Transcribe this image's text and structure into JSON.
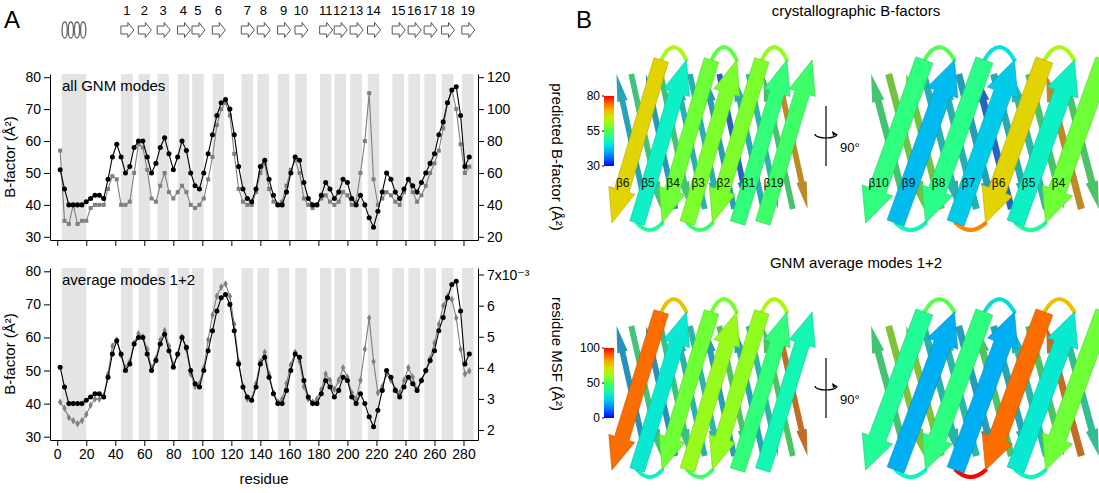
{
  "panel_labels": [
    "A",
    "B"
  ],
  "secondary_structure": {
    "helix": {
      "start": 3,
      "end": 20
    },
    "strands": [
      {
        "label": "1",
        "start": 44,
        "end": 52
      },
      {
        "label": "2",
        "start": 56,
        "end": 64
      },
      {
        "label": "3",
        "start": 69,
        "end": 77
      },
      {
        "label": "4",
        "start": 83,
        "end": 91
      },
      {
        "label": "5",
        "start": 93,
        "end": 101
      },
      {
        "label": "6",
        "start": 107,
        "end": 115
      },
      {
        "label": "7",
        "start": 127,
        "end": 135
      },
      {
        "label": "8",
        "start": 138,
        "end": 146
      },
      {
        "label": "9",
        "start": 152,
        "end": 160
      },
      {
        "label": "10",
        "start": 164,
        "end": 172
      },
      {
        "label": "11",
        "start": 181,
        "end": 189
      },
      {
        "label": "12",
        "start": 191,
        "end": 199
      },
      {
        "label": "13",
        "start": 202,
        "end": 210
      },
      {
        "label": "14",
        "start": 214,
        "end": 222
      },
      {
        "label": "15",
        "start": 231,
        "end": 239
      },
      {
        "label": "16",
        "start": 242,
        "end": 250
      },
      {
        "label": "17",
        "start": 253,
        "end": 261
      },
      {
        "label": "18",
        "start": 265,
        "end": 273
      },
      {
        "label": "19",
        "start": 279,
        "end": 287
      }
    ]
  },
  "chart_data": [
    {
      "type": "line",
      "title": "all GNM modes",
      "y_label": "B-factor (Å²)",
      "y2_label": "predicted B-factor (Å²)",
      "x": [
        2,
        5,
        8,
        11,
        14,
        17,
        20,
        23,
        26,
        29,
        32,
        35,
        38,
        41,
        44,
        47,
        50,
        53,
        56,
        59,
        62,
        65,
        68,
        71,
        74,
        77,
        80,
        83,
        86,
        89,
        92,
        95,
        98,
        101,
        104,
        107,
        110,
        113,
        116,
        119,
        122,
        125,
        128,
        131,
        134,
        137,
        140,
        143,
        146,
        149,
        152,
        155,
        158,
        161,
        164,
        167,
        170,
        173,
        176,
        179,
        182,
        185,
        188,
        191,
        194,
        197,
        200,
        203,
        206,
        209,
        212,
        215,
        218,
        221,
        224,
        227,
        230,
        233,
        236,
        239,
        242,
        245,
        248,
        251,
        254,
        257,
        260,
        263,
        266,
        269,
        272,
        275,
        278,
        281,
        284
      ],
      "xlim": [
        -5,
        290
      ],
      "xticks": [
        0,
        20,
        40,
        60,
        80,
        100,
        120,
        140,
        160,
        180,
        200,
        220,
        240,
        260,
        280
      ],
      "ylim": [
        29,
        81
      ],
      "yticks": [
        30,
        40,
        50,
        60,
        70,
        80
      ],
      "y2lim": [
        18,
        122
      ],
      "y2ticks": [
        20,
        40,
        60,
        80,
        100,
        120
      ],
      "tick_labels": "y",
      "series": [
        {
          "color": "#000000",
          "marker": "circle",
          "values": [
            51,
            45,
            40,
            40,
            40,
            40,
            41,
            42,
            43,
            43,
            42,
            48,
            55,
            59,
            55,
            50,
            52,
            58,
            60,
            60,
            55,
            50,
            53,
            58,
            61,
            56,
            51,
            55,
            60,
            57,
            50,
            46,
            45,
            50,
            56,
            62,
            68,
            72,
            73,
            70,
            62,
            52,
            45,
            42,
            41,
            45,
            52,
            54,
            48,
            43,
            40,
            40,
            44,
            50,
            55,
            54,
            47,
            42,
            40,
            40,
            43,
            47,
            45,
            42,
            44,
            48,
            47,
            42,
            40,
            43,
            40,
            36,
            33,
            38,
            44,
            50,
            48,
            44,
            42,
            45,
            48,
            46,
            44,
            47,
            50,
            53,
            56,
            62,
            66,
            72,
            76,
            77,
            68,
            52,
            55
          ]
        },
        {
          "color": "#7f7f7f",
          "marker": "square",
          "axis": "y2",
          "values": [
            74,
            30,
            28,
            40,
            28,
            30,
            30,
            38,
            40,
            40,
            40,
            50,
            58,
            56,
            40,
            40,
            42,
            60,
            78,
            76,
            62,
            44,
            42,
            52,
            60,
            48,
            44,
            48,
            52,
            48,
            40,
            38,
            40,
            44,
            56,
            70,
            90,
            100,
            104,
            96,
            72,
            50,
            42,
            40,
            40,
            48,
            60,
            66,
            50,
            42,
            40,
            42,
            52,
            62,
            68,
            60,
            44,
            40,
            38,
            40,
            44,
            46,
            42,
            40,
            42,
            48,
            46,
            40,
            42,
            60,
            80,
            110,
            56,
            40,
            44,
            48,
            46,
            42,
            40,
            48,
            56,
            48,
            42,
            46,
            52,
            60,
            66,
            74,
            88,
            104,
            112,
            100,
            78,
            60,
            64
          ]
        }
      ]
    },
    {
      "type": "line",
      "title": "average modes 1+2",
      "x_label": "residue",
      "y_label": "B-factor (Å²)",
      "y2_label": "residue MSF (Å²)",
      "x": [
        2,
        5,
        8,
        11,
        14,
        17,
        20,
        23,
        26,
        29,
        32,
        35,
        38,
        41,
        44,
        47,
        50,
        53,
        56,
        59,
        62,
        65,
        68,
        71,
        74,
        77,
        80,
        83,
        86,
        89,
        92,
        95,
        98,
        101,
        104,
        107,
        110,
        113,
        116,
        119,
        122,
        125,
        128,
        131,
        134,
        137,
        140,
        143,
        146,
        149,
        152,
        155,
        158,
        161,
        164,
        167,
        170,
        173,
        176,
        179,
        182,
        185,
        188,
        191,
        194,
        197,
        200,
        203,
        206,
        209,
        212,
        215,
        218,
        221,
        224,
        227,
        230,
        233,
        236,
        239,
        242,
        245,
        248,
        251,
        254,
        257,
        260,
        263,
        266,
        269,
        272,
        275,
        278,
        281,
        284
      ],
      "xlim": [
        -5,
        290
      ],
      "xticks": [
        0,
        20,
        40,
        60,
        80,
        100,
        120,
        140,
        160,
        180,
        200,
        220,
        240,
        260,
        280
      ],
      "ylim": [
        29,
        81
      ],
      "yticks": [
        30,
        40,
        50,
        60,
        70,
        80
      ],
      "y2lim": [
        1.68,
        7.21
      ],
      "y2ticks": [
        2,
        3,
        4,
        5,
        6,
        {
          "value": 7,
          "label": "7x10⁻³"
        }
      ],
      "series": [
        {
          "color": "#000000",
          "marker": "circle",
          "values": [
            51,
            45,
            40,
            40,
            40,
            40,
            41,
            42,
            43,
            43,
            42,
            48,
            55,
            59,
            55,
            50,
            52,
            58,
            60,
            60,
            55,
            50,
            53,
            58,
            61,
            56,
            51,
            55,
            60,
            57,
            50,
            46,
            45,
            50,
            56,
            62,
            68,
            72,
            73,
            70,
            62,
            52,
            45,
            42,
            41,
            45,
            52,
            54,
            48,
            43,
            40,
            40,
            44,
            50,
            55,
            54,
            47,
            42,
            40,
            40,
            43,
            47,
            45,
            42,
            44,
            48,
            47,
            42,
            40,
            43,
            40,
            36,
            33,
            38,
            44,
            50,
            48,
            44,
            42,
            45,
            48,
            46,
            44,
            47,
            50,
            53,
            56,
            62,
            66,
            72,
            76,
            77,
            68,
            52,
            55
          ]
        },
        {
          "color": "#7f7f7f",
          "marker": "diamond",
          "axis": "y2",
          "values": [
            2.9,
            2.7,
            2.4,
            2.3,
            2.2,
            2.3,
            2.5,
            2.8,
            3.0,
            3.0,
            3.1,
            3.8,
            4.7,
            4.9,
            4.4,
            4.0,
            4.2,
            4.8,
            5.1,
            5.0,
            4.6,
            4.0,
            4.3,
            4.9,
            5.2,
            4.7,
            4.1,
            4.4,
            5.0,
            4.6,
            3.8,
            3.4,
            3.5,
            4.0,
            4.9,
            5.7,
            6.3,
            6.6,
            6.7,
            6.3,
            5.4,
            4.2,
            3.4,
            3.0,
            3.0,
            3.5,
            4.2,
            4.5,
            3.8,
            3.2,
            2.9,
            3.0,
            3.5,
            4.1,
            4.5,
            4.2,
            3.4,
            3.0,
            2.9,
            3.0,
            3.3,
            3.8,
            3.6,
            3.3,
            3.6,
            4.0,
            3.7,
            3.2,
            3.0,
            3.6,
            4.6,
            5.6,
            4.2,
            3.2,
            3.4,
            3.8,
            3.6,
            3.3,
            3.2,
            3.6,
            4.0,
            3.7,
            3.3,
            3.6,
            3.9,
            4.3,
            4.8,
            5.4,
            6.0,
            6.3,
            6.2,
            5.6,
            4.6,
            3.8,
            3.9
          ]
        }
      ]
    }
  ],
  "structure": {
    "views": [
      {
        "title": "crystallographic B-factors",
        "colorbar": {
          "range": [
            30,
            80
          ],
          "ticks": [
            30,
            55,
            80
          ]
        },
        "front_labels": [
          "β6",
          "β5",
          "β4",
          "β3",
          "β2",
          "β1",
          "β19"
        ],
        "side_labels": [
          "β10",
          "β9",
          "β8",
          "β7",
          "β6",
          "β5",
          "β4"
        ],
        "rotation": "90°"
      },
      {
        "title": "GNM average modes 1+2",
        "colorbar": {
          "range": [
            0,
            100
          ],
          "ticks": [
            0,
            50,
            100
          ]
        },
        "rotation": "90°"
      }
    ]
  }
}
